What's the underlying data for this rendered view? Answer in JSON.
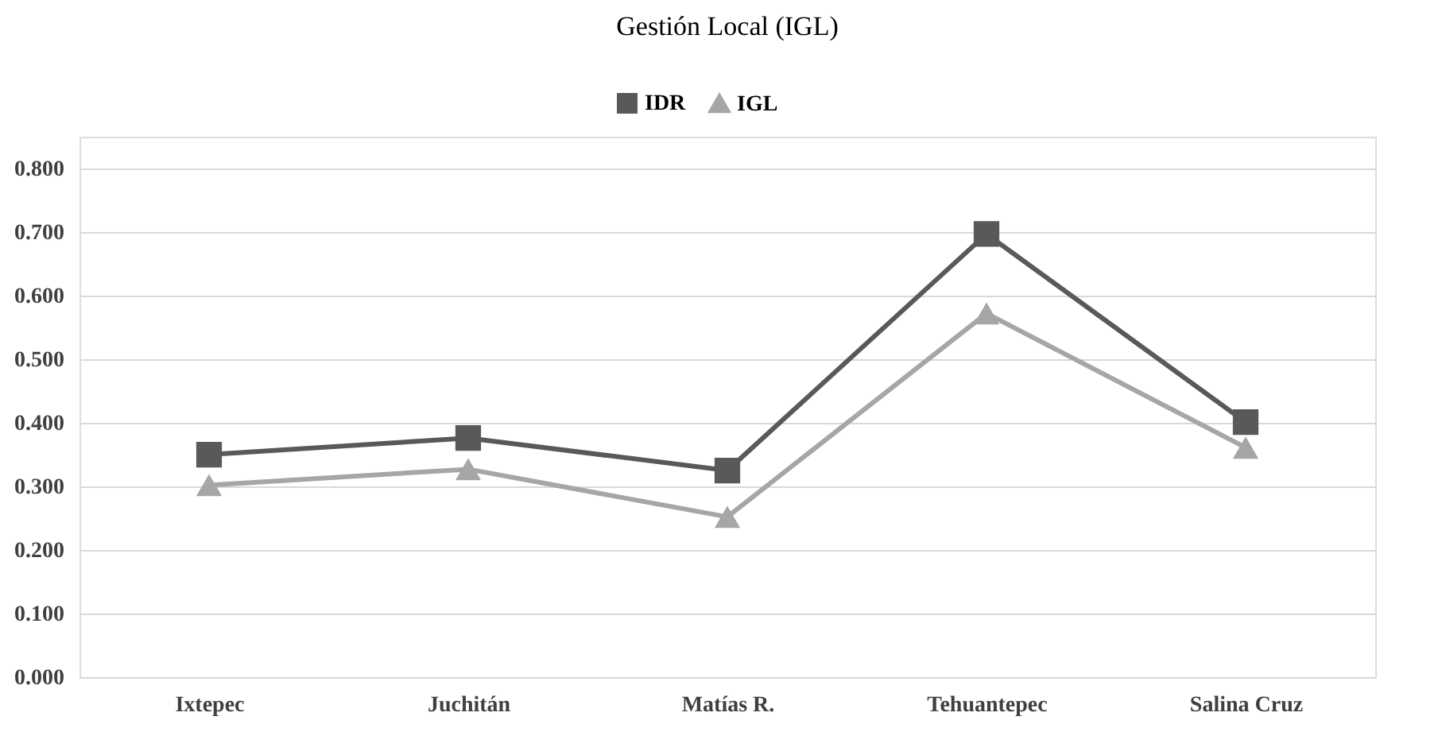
{
  "chart_data": {
    "type": "line",
    "title": "Gestión Local (IGL)",
    "categories": [
      "Ixtepec",
      "Juchitán",
      "Matías R.",
      "Tehuantepec",
      "Salina Cruz"
    ],
    "series": [
      {
        "name": "IDR",
        "color": "#595959",
        "marker": "square",
        "values": [
          0.35,
          0.376,
          0.325,
          0.697,
          0.401
        ]
      },
      {
        "name": "IGL",
        "color": "#a6a6a6",
        "marker": "triangle",
        "values": [
          0.302,
          0.327,
          0.252,
          0.572,
          0.361
        ]
      }
    ],
    "ylim": [
      0,
      0.85
    ],
    "yticks": [
      {
        "value": 0,
        "label": "0.000"
      },
      {
        "value": 0.1,
        "label": "0.100"
      },
      {
        "value": 0.2,
        "label": "0.200"
      },
      {
        "value": 0.3,
        "label": "0.300"
      },
      {
        "value": 0.4,
        "label": "0.400"
      },
      {
        "value": 0.5,
        "label": "0.500"
      },
      {
        "value": 0.6,
        "label": "0.600"
      },
      {
        "value": 0.7,
        "label": "0.700"
      },
      {
        "value": 0.8,
        "label": "0.800"
      }
    ],
    "grid": "y",
    "legend": "top",
    "line_style": "solid"
  }
}
